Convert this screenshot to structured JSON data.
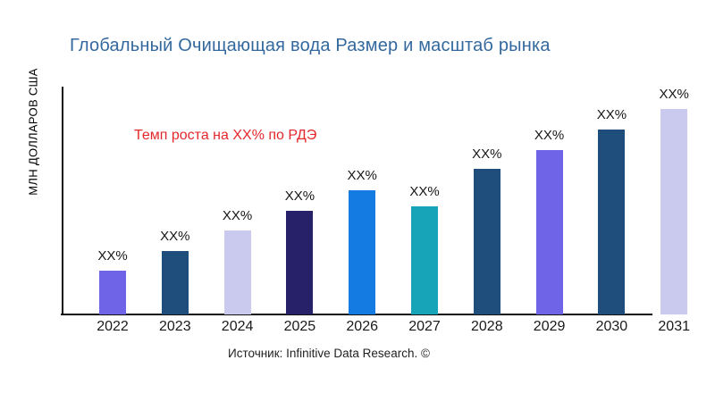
{
  "title": "Глобальный Очищающая вода Размер и масштаб рынка",
  "title_color": "#33689E",
  "y_axis_label": "МЛН ДОЛЛАРОВ США",
  "annotation": {
    "text": "Темп роста на XX% по РДЭ",
    "color": "#E3282C"
  },
  "source": "Источник: Infinitive Data Research. ©",
  "chart_data": {
    "type": "bar",
    "title": "Глобальный Очищающая вода Размер и масштаб рынка",
    "xlabel": "",
    "ylabel": "МЛН ДОЛЛАРОВ США",
    "categories": [
      "2022",
      "2023",
      "2024",
      "2025",
      "2026",
      "2027",
      "2028",
      "2029",
      "2030",
      "2031"
    ],
    "value_labels": [
      "XX%",
      "XX%",
      "XX%",
      "XX%",
      "XX%",
      "XX%",
      "XX%",
      "XX%",
      "XX%",
      "XX%"
    ],
    "relative_values": [
      49,
      71,
      94,
      116,
      139,
      121,
      163,
      184,
      207,
      230
    ],
    "bar_colors": [
      "#6F63E8",
      "#1F4E7C",
      "#C9CAEE",
      "#262168",
      "#137BE1",
      "#18A4B8",
      "#1F4E7C",
      "#6F63E8",
      "#1F4E7C",
      "#C9CAEE"
    ],
    "grid": false,
    "legend": false,
    "annotation": "Темп роста на XX% по РДЭ",
    "axis_color": "#111111"
  }
}
